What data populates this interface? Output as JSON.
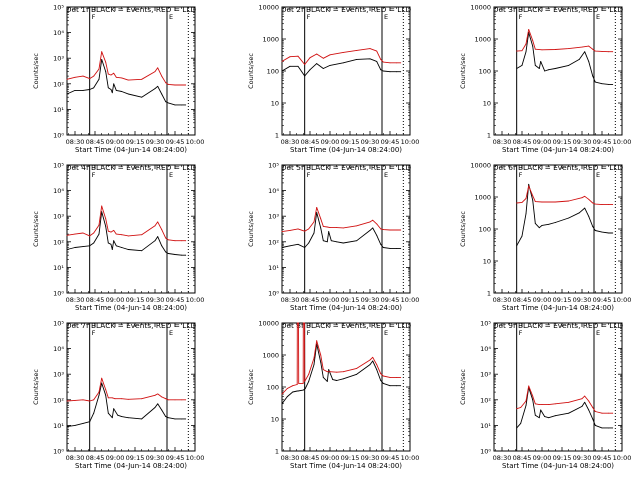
{
  "figure": {
    "xtick_labels": [
      "08:30",
      "08:45",
      "09:00",
      "09:15",
      "09:30",
      "09:45",
      "10:00"
    ],
    "xlabel": "Start Time (04-Jun-14 08:24:00)",
    "ylabel": "Counts/sec",
    "series_colors": {
      "events": "#000000",
      "lld": "#d01010"
    }
  },
  "chart_data": [
    {
      "type": "line",
      "title": "Det 1f BLACK = Events, RED = LLD",
      "ylog": true,
      "ylim": [
        1,
        100000
      ],
      "yticks": [
        "10⁰",
        "10¹",
        "10²",
        "10³",
        "10⁴",
        "10⁵"
      ],
      "xlim_min": [
        24,
        120
      ],
      "markers": [
        {
          "x": 41,
          "label": "F"
        },
        {
          "x": 99,
          "label": "E"
        }
      ],
      "dotted_x": [
        115
      ],
      "series": [
        {
          "name": "Events",
          "x": [
            24,
            30,
            36,
            41,
            44,
            48,
            50,
            53,
            55,
            57,
            58,
            59,
            61,
            65,
            70,
            80,
            90,
            92,
            95,
            98,
            100,
            105,
            110,
            113
          ],
          "values": [
            40,
            55,
            55,
            60,
            70,
            150,
            900,
            300,
            70,
            60,
            45,
            100,
            55,
            50,
            40,
            30,
            65,
            80,
            40,
            20,
            18,
            15,
            15,
            15
          ]
        },
        {
          "name": "LLD",
          "x": [
            24,
            30,
            36,
            41,
            44,
            48,
            50,
            53,
            55,
            57,
            59,
            61,
            65,
            70,
            80,
            90,
            92,
            95,
            98,
            100,
            105,
            110,
            113
          ],
          "values": [
            150,
            180,
            200,
            160,
            200,
            380,
            1800,
            700,
            240,
            220,
            260,
            180,
            170,
            140,
            150,
            300,
            420,
            200,
            110,
            95,
            90,
            90,
            90
          ]
        }
      ]
    },
    {
      "type": "line",
      "title": "Det 2f BLACK = Events, RED = LLD",
      "ylog": true,
      "ylim": [
        1,
        10000
      ],
      "yticks": [
        "1",
        "10",
        "100",
        "1000",
        "10000"
      ],
      "xlim_min": [
        24,
        120
      ],
      "markers": [
        {
          "x": 41,
          "label": "F"
        },
        {
          "x": 99,
          "label": "E"
        }
      ],
      "dotted_x": [
        115
      ],
      "series": [
        {
          "name": "Events",
          "x": [
            24,
            30,
            36,
            41,
            45,
            50,
            55,
            60,
            70,
            80,
            90,
            95,
            98,
            100,
            105,
            110,
            113
          ],
          "values": [
            100,
            140,
            140,
            70,
            110,
            170,
            120,
            150,
            180,
            230,
            240,
            200,
            110,
            100,
            95,
            95,
            95
          ]
        },
        {
          "name": "LLD",
          "x": [
            24,
            30,
            36,
            41,
            45,
            50,
            55,
            60,
            70,
            80,
            90,
            95,
            98,
            100,
            105,
            110,
            113
          ],
          "values": [
            200,
            280,
            290,
            160,
            260,
            340,
            250,
            320,
            380,
            440,
            500,
            420,
            230,
            190,
            180,
            180,
            180
          ]
        }
      ]
    },
    {
      "type": "line",
      "title": "Det 3f BLACK = Events, RED = LLD",
      "ylog": true,
      "ylim": [
        1,
        10000
      ],
      "yticks": [
        "1",
        "10",
        "100",
        "1000",
        "10000"
      ],
      "xlim_min": [
        24,
        120
      ],
      "markers": [
        {
          "x": 41,
          "label": "F"
        },
        {
          "x": 99,
          "label": "E"
        }
      ],
      "dotted_x": [
        115
      ],
      "series": [
        {
          "name": "Events",
          "x": [
            41,
            45,
            48,
            50,
            53,
            55,
            58,
            59,
            62,
            65,
            70,
            80,
            88,
            92,
            95,
            98,
            100,
            105,
            110,
            113
          ],
          "values": [
            120,
            150,
            400,
            1600,
            600,
            150,
            120,
            200,
            100,
            110,
            120,
            150,
            230,
            400,
            200,
            70,
            45,
            40,
            38,
            38
          ]
        },
        {
          "name": "LLD",
          "x": [
            41,
            45,
            48,
            50,
            53,
            55,
            60,
            70,
            80,
            90,
            95,
            98,
            100,
            105,
            110,
            113
          ],
          "values": [
            420,
            430,
            700,
            2000,
            900,
            480,
            460,
            470,
            500,
            560,
            600,
            480,
            420,
            410,
            400,
            400
          ]
        }
      ]
    },
    {
      "type": "line",
      "title": "Det 4f BLACK = Events, RED = LLD",
      "ylog": true,
      "ylim": [
        1,
        100000
      ],
      "yticks": [
        "10⁰",
        "10¹",
        "10²",
        "10³",
        "10⁴",
        "10⁵"
      ],
      "xlim_min": [
        24,
        120
      ],
      "markers": [
        {
          "x": 41,
          "label": "F"
        },
        {
          "x": 99,
          "label": "E"
        }
      ],
      "dotted_x": [
        115
      ],
      "series": [
        {
          "name": "Events",
          "x": [
            24,
            30,
            36,
            41,
            44,
            48,
            50,
            53,
            55,
            57,
            58,
            59,
            61,
            65,
            70,
            80,
            90,
            92,
            95,
            98,
            100,
            105,
            110,
            113
          ],
          "values": [
            50,
            60,
            65,
            70,
            90,
            200,
            1500,
            400,
            90,
            80,
            50,
            110,
            70,
            60,
            50,
            45,
            110,
            160,
            70,
            40,
            35,
            32,
            30,
            30
          ]
        },
        {
          "name": "LLD",
          "x": [
            24,
            30,
            36,
            41,
            44,
            48,
            50,
            53,
            55,
            57,
            59,
            61,
            65,
            70,
            80,
            90,
            92,
            95,
            98,
            100,
            105,
            110,
            113
          ],
          "values": [
            180,
            200,
            220,
            170,
            220,
            450,
            2500,
            800,
            260,
            240,
            280,
            200,
            190,
            170,
            190,
            420,
            600,
            300,
            140,
            120,
            110,
            110,
            110
          ]
        }
      ]
    },
    {
      "type": "line",
      "title": "Det 5f BLACK = Events, RED = LLD",
      "ylog": true,
      "ylim": [
        1,
        100000
      ],
      "yticks": [
        "10⁰",
        "10¹",
        "10²",
        "10³",
        "10⁴",
        "10⁵"
      ],
      "xlim_min": [
        24,
        120
      ],
      "markers": [
        {
          "x": 41,
          "label": "F"
        },
        {
          "x": 99,
          "label": "E"
        }
      ],
      "dotted_x": [
        115
      ],
      "series": [
        {
          "name": "Events",
          "x": [
            24,
            30,
            36,
            41,
            44,
            48,
            50,
            53,
            55,
            58,
            59,
            61,
            65,
            70,
            80,
            90,
            92,
            95,
            98,
            100,
            105,
            110,
            113
          ],
          "values": [
            60,
            70,
            80,
            60,
            90,
            220,
            1400,
            350,
            110,
            100,
            250,
            110,
            100,
            90,
            110,
            280,
            350,
            180,
            80,
            60,
            55,
            55,
            55
          ]
        },
        {
          "name": "LLD",
          "x": [
            24,
            30,
            36,
            41,
            44,
            48,
            50,
            53,
            55,
            58,
            60,
            65,
            70,
            80,
            90,
            92,
            95,
            98,
            100,
            105,
            110,
            113
          ],
          "values": [
            250,
            280,
            320,
            260,
            320,
            600,
            2200,
            800,
            400,
            380,
            360,
            360,
            350,
            420,
            600,
            700,
            500,
            320,
            300,
            290,
            290,
            290
          ]
        }
      ]
    },
    {
      "type": "line",
      "title": "Det 6f BLACK = Events, RED = LLD",
      "ylog": true,
      "ylim": [
        1,
        10000
      ],
      "yticks": [
        "1",
        "10",
        "100",
        "1000",
        "10000"
      ],
      "xlim_min": [
        24,
        120
      ],
      "markers": [
        {
          "x": 41,
          "label": "F"
        },
        {
          "x": 99,
          "label": "E"
        }
      ],
      "dotted_x": [
        115
      ],
      "series": [
        {
          "name": "Events",
          "x": [
            41,
            45,
            48,
            50,
            53,
            55,
            58,
            60,
            65,
            70,
            80,
            88,
            92,
            95,
            98,
            100,
            105,
            110,
            113
          ],
          "values": [
            30,
            60,
            300,
            2500,
            800,
            150,
            110,
            130,
            140,
            160,
            220,
            320,
            450,
            250,
            120,
            90,
            80,
            75,
            75
          ]
        },
        {
          "name": "LLD",
          "x": [
            41,
            45,
            48,
            50,
            53,
            55,
            60,
            70,
            80,
            90,
            92,
            95,
            98,
            100,
            105,
            110,
            113
          ],
          "values": [
            650,
            680,
            900,
            2200,
            1100,
            720,
            700,
            700,
            750,
            950,
            1050,
            850,
            650,
            600,
            580,
            580,
            580
          ]
        }
      ]
    },
    {
      "type": "line",
      "title": "Det 7f BLACK = Events, RED = LLD",
      "ylog": true,
      "ylim": [
        1,
        100000
      ],
      "yticks": [
        "10⁰",
        "10¹",
        "10²",
        "10³",
        "10⁴",
        "10⁵"
      ],
      "xlim_min": [
        24,
        120
      ],
      "markers": [
        {
          "x": 41,
          "label": "F"
        },
        {
          "x": 99,
          "label": "E"
        }
      ],
      "dotted_x": [
        115
      ],
      "series": [
        {
          "name": "Events",
          "x": [
            24,
            30,
            36,
            41,
            44,
            48,
            50,
            53,
            55,
            58,
            59,
            62,
            65,
            70,
            80,
            90,
            92,
            95,
            98,
            100,
            105,
            110,
            113
          ],
          "values": [
            9,
            10,
            12,
            14,
            30,
            150,
            450,
            150,
            30,
            20,
            45,
            25,
            22,
            20,
            18,
            50,
            70,
            40,
            22,
            20,
            18,
            18,
            18
          ]
        },
        {
          "name": "LLD",
          "x": [
            24,
            30,
            36,
            41,
            44,
            48,
            50,
            53,
            55,
            58,
            60,
            65,
            70,
            80,
            90,
            92,
            95,
            98,
            100,
            105,
            110,
            113
          ],
          "values": [
            90,
            95,
            100,
            90,
            100,
            200,
            700,
            250,
            120,
            120,
            110,
            110,
            105,
            110,
            150,
            170,
            130,
            110,
            100,
            100,
            100,
            100
          ]
        }
      ]
    },
    {
      "type": "line",
      "title": "Det 8f BLACK = Events, RED = LLD",
      "ylog": true,
      "ylim": [
        1,
        10000
      ],
      "yticks": [
        "1",
        "10",
        "100",
        "1000",
        "10000"
      ],
      "xlim_min": [
        24,
        120
      ],
      "markers": [
        {
          "x": 41,
          "label": "F"
        },
        {
          "x": 99,
          "label": "E"
        }
      ],
      "dotted_x": [
        115
      ],
      "series": [
        {
          "name": "Events",
          "x": [
            24,
            28,
            32,
            35.5,
            36,
            40,
            41.5,
            44,
            48,
            50,
            53,
            55,
            58,
            59,
            62,
            65,
            70,
            80,
            90,
            92,
            95,
            98,
            100,
            105,
            110,
            113
          ],
          "values": [
            30,
            50,
            70,
            75,
            75,
            80,
            90,
            150,
            500,
            2200,
            600,
            200,
            150,
            350,
            170,
            160,
            180,
            250,
            500,
            650,
            350,
            160,
            130,
            110,
            110,
            110
          ]
        },
        {
          "name": "LLD",
          "x": [
            24,
            28,
            32,
            35.4,
            35.5,
            36.4,
            36.5,
            39.9,
            40,
            40.9,
            41,
            44,
            48,
            50,
            53,
            55,
            58,
            60,
            65,
            70,
            80,
            90,
            92,
            95,
            98,
            100,
            105,
            110,
            113
          ],
          "values": [
            60,
            90,
            110,
            120,
            10000,
            10000,
            130,
            130,
            10000,
            10000,
            150,
            250,
            800,
            2800,
            1000,
            350,
            300,
            300,
            290,
            300,
            380,
            700,
            850,
            500,
            260,
            220,
            200,
            200,
            200
          ]
        }
      ]
    },
    {
      "type": "line",
      "title": "Det 9f BLACK = Events, RED = LLD",
      "ylog": true,
      "ylim": [
        1,
        100000
      ],
      "yticks": [
        "10⁰",
        "10¹",
        "10²",
        "10³",
        "10⁴",
        "10⁵"
      ],
      "xlim_min": [
        24,
        120
      ],
      "markers": [
        {
          "x": 41,
          "label": "F"
        },
        {
          "x": 99,
          "label": "E"
        }
      ],
      "dotted_x": [
        115
      ],
      "series": [
        {
          "name": "Events",
          "x": [
            41,
            44,
            48,
            50,
            53,
            55,
            58,
            59,
            62,
            65,
            70,
            80,
            90,
            92,
            95,
            98,
            100,
            105,
            110,
            113
          ],
          "values": [
            8,
            12,
            60,
            300,
            100,
            25,
            20,
            40,
            22,
            20,
            24,
            30,
            55,
            80,
            40,
            18,
            10,
            8,
            8,
            8
          ]
        },
        {
          "name": "LLD",
          "x": [
            41,
            44,
            48,
            50,
            53,
            55,
            58,
            60,
            65,
            70,
            80,
            90,
            92,
            95,
            98,
            100,
            105,
            110,
            113
          ],
          "values": [
            45,
            50,
            90,
            350,
            140,
            70,
            65,
            65,
            65,
            70,
            80,
            110,
            140,
            90,
            50,
            35,
            30,
            30,
            30
          ]
        }
      ]
    }
  ]
}
